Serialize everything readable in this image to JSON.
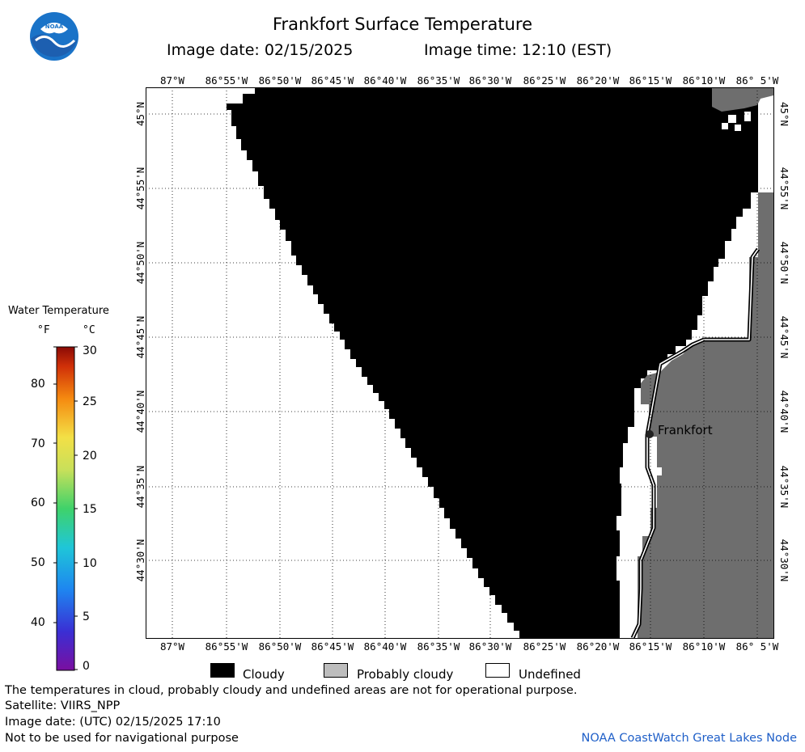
{
  "title": "Frankfort Surface Temperature",
  "image_date_label": "Image date: 02/15/2025",
  "image_time_label": "Image time: 12:10 (EST)",
  "logo_text": "NOAA",
  "map": {
    "lon_labels": [
      "87°W",
      "86°55'W",
      "86°50'W",
      "86°45'W",
      "86°40'W",
      "86°35'W",
      "86°30'W",
      "86°25'W",
      "86°20'W",
      "86°15'W",
      "86°10'W",
      "86° 5'W"
    ],
    "lat_labels": [
      "45°N",
      "44°55'N",
      "44°50'N",
      "44°45'N",
      "44°40'N",
      "44°35'N",
      "44°30'N"
    ],
    "city": "Frankfort",
    "colors": {
      "cloudy": "#000000",
      "probably_cloudy": "#6e6e6e",
      "undefined": "#ffffff"
    }
  },
  "legend": {
    "title": "Water Temperature",
    "unit_f": "°F",
    "unit_c": "°C",
    "f_ticks": [
      "80",
      "70",
      "60",
      "50",
      "40"
    ],
    "c_ticks": [
      "30",
      "25",
      "20",
      "15",
      "10",
      "5",
      "0"
    ]
  },
  "key": {
    "cloudy": "Cloudy",
    "probably_cloudy": "Probably cloudy",
    "undefined": "Undefined"
  },
  "footer": {
    "note": "The temperatures in cloud, probably cloudy and undefined areas are not for operational purpose.",
    "satellite": "Satellite: VIIRS_NPP",
    "utc": "Image date: (UTC) 02/15/2025  17:10",
    "nav": "Not to be used for navigational purpose",
    "credit": "NOAA CoastWatch Great Lakes Node"
  }
}
